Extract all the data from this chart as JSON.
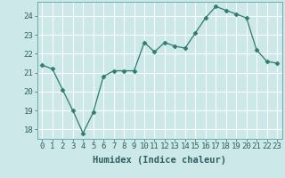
{
  "x": [
    0,
    1,
    2,
    3,
    4,
    5,
    6,
    7,
    8,
    9,
    10,
    11,
    12,
    13,
    14,
    15,
    16,
    17,
    18,
    19,
    20,
    21,
    22,
    23
  ],
  "y": [
    21.4,
    21.2,
    20.1,
    19.0,
    17.8,
    18.9,
    20.8,
    21.1,
    21.1,
    21.1,
    22.6,
    22.1,
    22.6,
    22.4,
    22.3,
    23.1,
    23.9,
    24.5,
    24.3,
    24.1,
    23.9,
    22.2,
    21.6,
    21.5
  ],
  "line_color": "#2e7d6e",
  "marker": "D",
  "marker_size": 2.5,
  "bg_color": "#cce8e8",
  "grid_color": "#ffffff",
  "xlabel": "Humidex (Indice chaleur)",
  "ylim": [
    17.5,
    24.75
  ],
  "yticks": [
    18,
    19,
    20,
    21,
    22,
    23,
    24
  ],
  "xticks": [
    0,
    1,
    2,
    3,
    4,
    5,
    6,
    7,
    8,
    9,
    10,
    11,
    12,
    13,
    14,
    15,
    16,
    17,
    18,
    19,
    20,
    21,
    22,
    23
  ],
  "xlabel_fontsize": 7.5,
  "tick_fontsize": 6.5
}
